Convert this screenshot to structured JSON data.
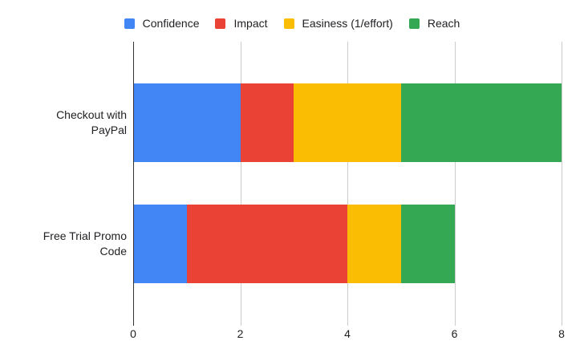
{
  "chart_data": {
    "type": "bar",
    "orientation": "horizontal",
    "stacked": true,
    "title": "",
    "categories": [
      "Checkout with PayPal",
      "Free Trial Promo Code"
    ],
    "category_label_lines": [
      [
        "Checkout with",
        "PayPal"
      ],
      [
        "Free Trial Promo",
        "Code"
      ]
    ],
    "series": [
      {
        "name": "Confidence",
        "color": "#4285F4",
        "values": [
          2,
          1
        ]
      },
      {
        "name": "Impact",
        "color": "#EA4335",
        "values": [
          1,
          3
        ]
      },
      {
        "name": "Easiness (1/effort)",
        "color": "#FBBC04",
        "values": [
          2,
          1
        ]
      },
      {
        "name": "Reach",
        "color": "#34A853",
        "values": [
          3,
          1
        ]
      }
    ],
    "xlim": [
      0,
      8
    ],
    "x_ticks": [
      0,
      2,
      4,
      6,
      8
    ],
    "legend_position": "top",
    "grid": "vertical",
    "colors": {
      "gridline": "#cccccc",
      "axis_line": "#333333",
      "text": "#202124",
      "background": "#ffffff"
    }
  }
}
